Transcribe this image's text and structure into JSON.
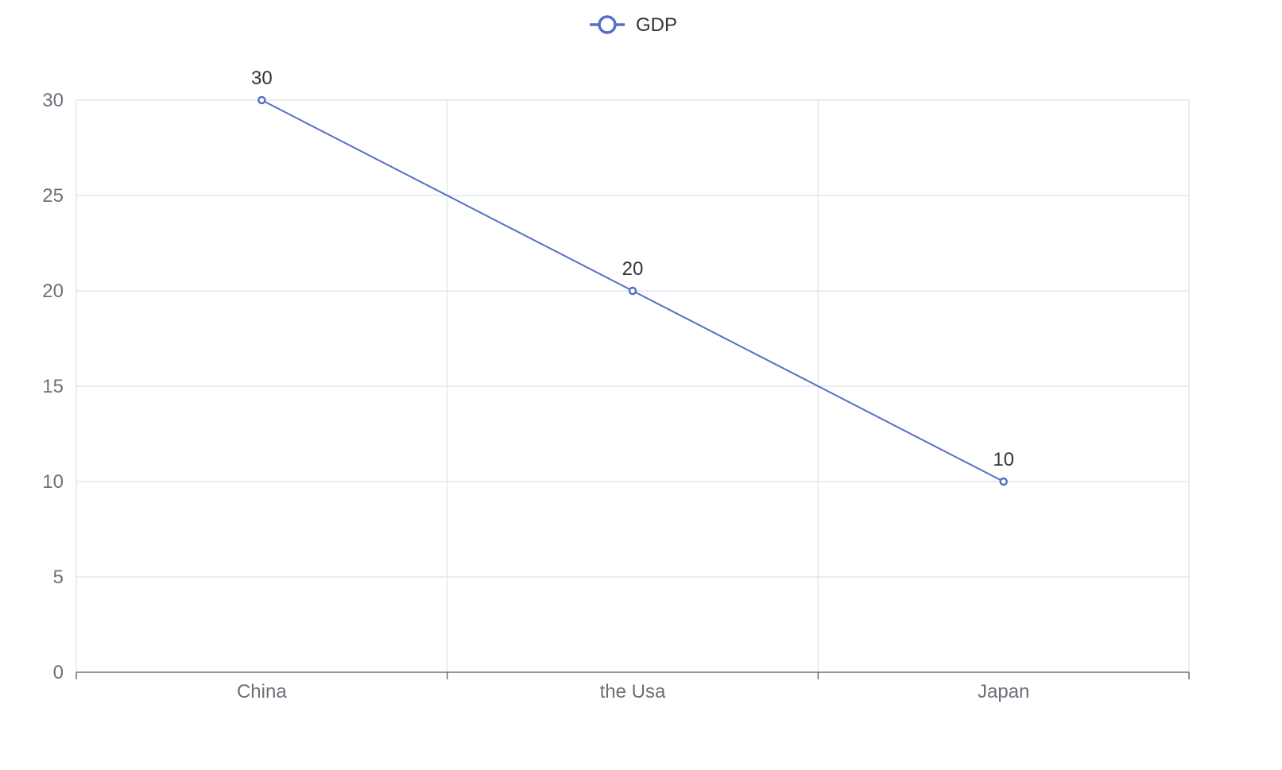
{
  "chart_data": {
    "type": "line",
    "categories": [
      "China",
      "the Usa",
      "Japan"
    ],
    "series": [
      {
        "name": "GDP",
        "values": [
          30,
          20,
          10
        ]
      }
    ],
    "ylim": [
      0,
      30
    ],
    "y_ticks": [
      0,
      5,
      10,
      15,
      20,
      25,
      30
    ],
    "grid": true,
    "legend_position": "top-center",
    "show_data_labels": true,
    "colors": {
      "series": "#5470c6",
      "grid": "#e0e6f1",
      "axis": "#6e7079",
      "label": "#333333"
    }
  }
}
